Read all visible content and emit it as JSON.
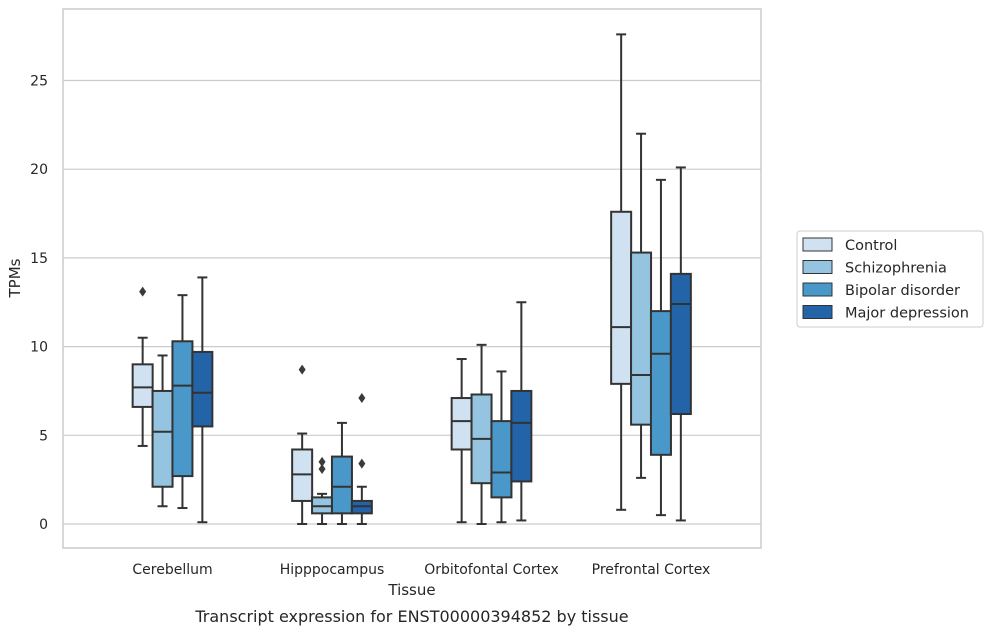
{
  "caption": "Transcript expression for ENST00000394852 by tissue",
  "colors": {
    "Control": "#d0e1f2",
    "Schizophrenia": "#94c4df",
    "Bipolar disorder": "#4a98c9",
    "Major depression": "#2363a8",
    "edge": "#333333",
    "grid": "#cccccc",
    "frame": "#cccccc"
  },
  "chart_data": {
    "type": "boxplot",
    "xlabel": "Tissue",
    "ylabel": "TPMs",
    "ylim": [
      -1.3,
      28.7
    ],
    "yticks": [
      0,
      5,
      10,
      15,
      20,
      25
    ],
    "grid": "horizontal",
    "legend_position": "right",
    "categories": [
      "Cerebellum",
      "Hipppocampus",
      "Orbitofontal Cortex",
      "Prefrontal Cortex"
    ],
    "series": [
      {
        "name": "Control",
        "boxes": [
          {
            "whislo": 4.4,
            "q1": 6.6,
            "med": 7.7,
            "q3": 9.0,
            "whishi": 10.5,
            "fliers": [
              13.1
            ]
          },
          {
            "whislo": 0.0,
            "q1": 1.3,
            "med": 2.8,
            "q3": 4.2,
            "whishi": 5.1,
            "fliers": [
              8.7
            ]
          },
          {
            "whislo": 0.1,
            "q1": 4.2,
            "med": 5.8,
            "q3": 7.1,
            "whishi": 9.3,
            "fliers": []
          },
          {
            "whislo": 0.8,
            "q1": 7.9,
            "med": 11.1,
            "q3": 17.6,
            "whishi": 27.6,
            "fliers": []
          }
        ]
      },
      {
        "name": "Schizophrenia",
        "boxes": [
          {
            "whislo": 1.0,
            "q1": 2.1,
            "med": 5.2,
            "q3": 7.5,
            "whishi": 9.5,
            "fliers": []
          },
          {
            "whislo": 0.0,
            "q1": 0.6,
            "med": 1.0,
            "q3": 1.5,
            "whishi": 1.7,
            "fliers": [
              3.1,
              3.5
            ]
          },
          {
            "whislo": 0.0,
            "q1": 2.3,
            "med": 4.8,
            "q3": 7.3,
            "whishi": 10.1,
            "fliers": []
          },
          {
            "whislo": 2.6,
            "q1": 5.6,
            "med": 8.4,
            "q3": 15.3,
            "whishi": 22.0,
            "fliers": []
          }
        ]
      },
      {
        "name": "Bipolar disorder",
        "boxes": [
          {
            "whislo": 0.9,
            "q1": 2.7,
            "med": 7.8,
            "q3": 10.3,
            "whishi": 12.9,
            "fliers": []
          },
          {
            "whislo": 0.0,
            "q1": 0.6,
            "med": 2.1,
            "q3": 3.8,
            "whishi": 5.7,
            "fliers": []
          },
          {
            "whislo": 0.1,
            "q1": 1.5,
            "med": 2.9,
            "q3": 5.8,
            "whishi": 8.6,
            "fliers": []
          },
          {
            "whislo": 0.5,
            "q1": 3.9,
            "med": 9.6,
            "q3": 12.0,
            "whishi": 19.4,
            "fliers": []
          }
        ]
      },
      {
        "name": "Major depression",
        "boxes": [
          {
            "whislo": 0.1,
            "q1": 5.5,
            "med": 7.4,
            "q3": 9.7,
            "whishi": 13.9,
            "fliers": []
          },
          {
            "whislo": 0.0,
            "q1": 0.6,
            "med": 1.0,
            "q3": 1.3,
            "whishi": 2.1,
            "fliers": [
              3.4,
              7.1
            ]
          },
          {
            "whislo": 0.2,
            "q1": 2.4,
            "med": 5.7,
            "q3": 7.5,
            "whishi": 12.5,
            "fliers": []
          },
          {
            "whislo": 0.2,
            "q1": 6.2,
            "med": 12.4,
            "q3": 14.1,
            "whishi": 20.1,
            "fliers": []
          }
        ]
      }
    ]
  }
}
